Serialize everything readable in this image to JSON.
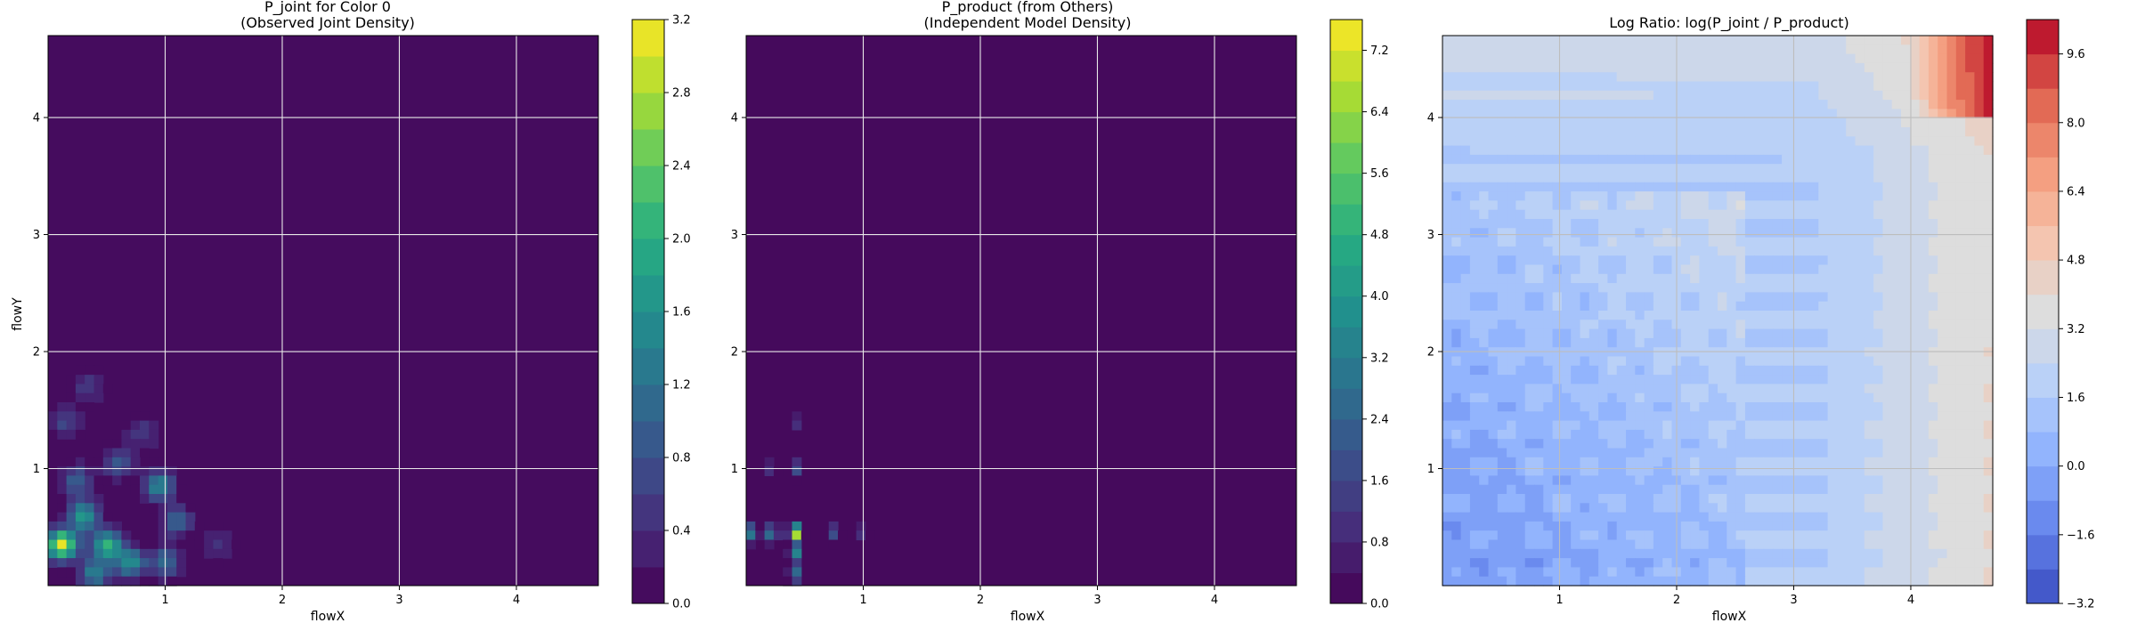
{
  "chart_data": [
    {
      "type": "heatmap",
      "title": "P_joint for Color 0",
      "subtitle": "(Observed Joint Density)",
      "xlabel": "flowX",
      "ylabel": "flowY",
      "xlim": [
        0,
        4.7
      ],
      "ylim": [
        0,
        4.7
      ],
      "x_ticks": [
        "1",
        "2",
        "3",
        "4"
      ],
      "y_ticks": [
        "1",
        "2",
        "3",
        "4"
      ],
      "grid": true,
      "colormap": "viridis",
      "colorbar": {
        "min": 0.0,
        "max": 3.2,
        "ticks": [
          "0.0",
          "0.4",
          "0.8",
          "1.2",
          "1.6",
          "2.0",
          "2.4",
          "2.8",
          "3.2"
        ],
        "levels": 16
      },
      "background_value": 0.0,
      "hotspots": [
        {
          "x": 0.12,
          "y": 0.35,
          "value": 3.0
        },
        {
          "x": 0.3,
          "y": 0.6,
          "value": 1.8
        },
        {
          "x": 0.5,
          "y": 0.35,
          "value": 2.0
        },
        {
          "x": 0.7,
          "y": 0.2,
          "value": 1.6
        },
        {
          "x": 0.95,
          "y": 0.85,
          "value": 1.5
        },
        {
          "x": 0.25,
          "y": 0.9,
          "value": 1.0
        },
        {
          "x": 0.6,
          "y": 1.05,
          "value": 0.9
        },
        {
          "x": 1.1,
          "y": 0.55,
          "value": 1.0
        },
        {
          "x": 1.0,
          "y": 0.2,
          "value": 1.2
        },
        {
          "x": 0.15,
          "y": 1.4,
          "value": 0.7
        },
        {
          "x": 0.35,
          "y": 1.7,
          "value": 0.6
        },
        {
          "x": 1.45,
          "y": 0.35,
          "value": 0.5
        },
        {
          "x": 0.8,
          "y": 1.3,
          "value": 0.6
        },
        {
          "x": 0.4,
          "y": 0.1,
          "value": 1.4
        }
      ]
    },
    {
      "type": "heatmap",
      "title": "P_product (from Others)",
      "subtitle": "(Independent Model Density)",
      "xlabel": "flowX",
      "ylabel": "",
      "xlim": [
        0,
        4.7
      ],
      "ylim": [
        0,
        4.7
      ],
      "x_ticks": [
        "1",
        "2",
        "3",
        "4"
      ],
      "y_ticks": [
        "1",
        "2",
        "3",
        "4"
      ],
      "grid": true,
      "colormap": "viridis",
      "colorbar": {
        "min": 0.0,
        "max": 7.6,
        "ticks": [
          "0.0",
          "0.8",
          "1.6",
          "2.4",
          "3.2",
          "4.0",
          "4.8",
          "5.6",
          "6.4",
          "7.2"
        ],
        "levels": 19
      },
      "background_value": 0.0,
      "hotspots": [
        {
          "x": 0.42,
          "y": 0.45,
          "value": 7.2
        },
        {
          "x": 0.05,
          "y": 0.45,
          "value": 3.5
        },
        {
          "x": 0.22,
          "y": 0.45,
          "value": 3.5
        },
        {
          "x": 0.42,
          "y": 0.28,
          "value": 3.5
        },
        {
          "x": 0.42,
          "y": 0.1,
          "value": 3.0
        },
        {
          "x": 0.42,
          "y": 1.0,
          "value": 2.0
        },
        {
          "x": 0.42,
          "y": 1.4,
          "value": 1.2
        },
        {
          "x": 0.75,
          "y": 0.45,
          "value": 2.0
        },
        {
          "x": 1.0,
          "y": 0.45,
          "value": 1.2
        },
        {
          "x": 0.22,
          "y": 1.0,
          "value": 1.2
        }
      ]
    },
    {
      "type": "heatmap",
      "title": "Log Ratio: log(P_joint / P_product)",
      "xlabel": "flowX",
      "ylabel": "",
      "xlim": [
        0,
        4.7
      ],
      "ylim": [
        0,
        4.7
      ],
      "x_ticks": [
        "1",
        "2",
        "3",
        "4"
      ],
      "y_ticks": [
        "1",
        "2",
        "3",
        "4"
      ],
      "grid": true,
      "colormap": "coolwarm",
      "colorbar": {
        "min": -3.2,
        "max": 10.4,
        "ticks": [
          "−3.2",
          "−1.6",
          "0.0",
          "1.6",
          "3.2",
          "4.8",
          "6.4",
          "8.0",
          "9.6"
        ],
        "levels": 17
      },
      "field_summary": {
        "bottom_left_value": -0.8,
        "top_right_value": 10.4,
        "typical_value": 1.6
      }
    }
  ]
}
